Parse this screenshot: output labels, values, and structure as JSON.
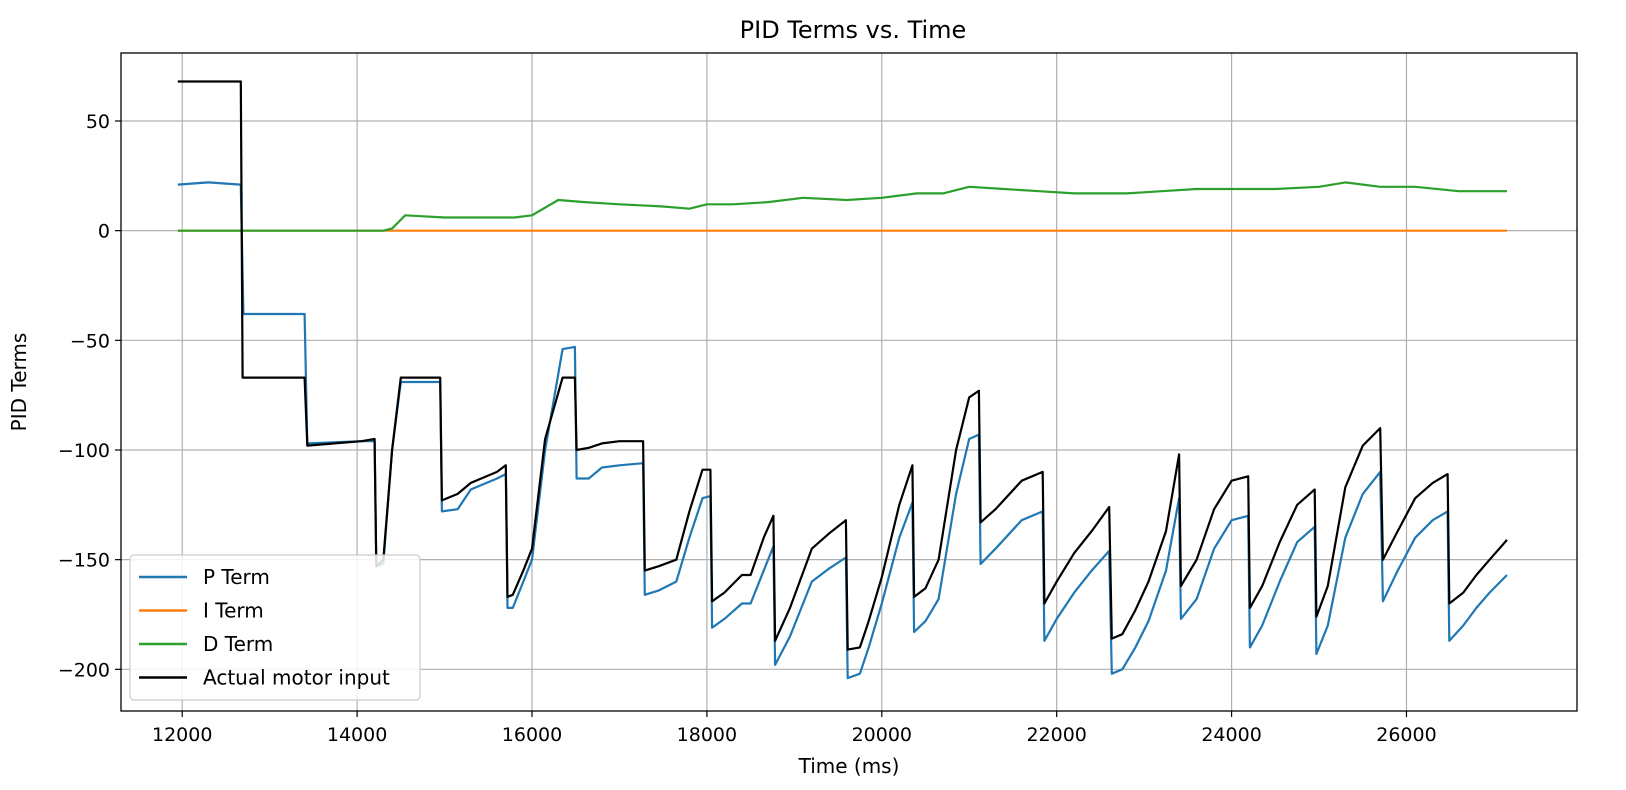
{
  "chart_data": {
    "type": "line",
    "title": "PID Terms vs. Time",
    "xlabel": "Time (ms)",
    "ylabel": "PID Terms",
    "xlim": [
      11300,
      27950
    ],
    "ylim": [
      -219,
      81
    ],
    "xticks": [
      12000,
      14000,
      16000,
      18000,
      20000,
      22000,
      24000,
      26000
    ],
    "xtick_labels": [
      "12000",
      "14000",
      "16000",
      "18000",
      "20000",
      "22000",
      "24000",
      "26000"
    ],
    "yticks": [
      50,
      0,
      -50,
      -100,
      -150,
      -200
    ],
    "ytick_labels": [
      "50",
      "0",
      "−50",
      "−100",
      "−150",
      "−200"
    ],
    "grid": true,
    "legend_position": "lower-left",
    "series": [
      {
        "name": "P Term",
        "color": "#1f77b4",
        "points": [
          [
            11950,
            21
          ],
          [
            12300,
            22
          ],
          [
            12670,
            21
          ],
          [
            12700,
            -38
          ],
          [
            13400,
            -38
          ],
          [
            13430,
            -97
          ],
          [
            14050,
            -96
          ],
          [
            14200,
            -96
          ],
          [
            14220,
            -153
          ],
          [
            14300,
            -152
          ],
          [
            14400,
            -100
          ],
          [
            14500,
            -69
          ],
          [
            14950,
            -69
          ],
          [
            14970,
            -128
          ],
          [
            15150,
            -127
          ],
          [
            15300,
            -118
          ],
          [
            15600,
            -113
          ],
          [
            15700,
            -111
          ],
          [
            15720,
            -172
          ],
          [
            15780,
            -172
          ],
          [
            15900,
            -160
          ],
          [
            16000,
            -150
          ],
          [
            16150,
            -100
          ],
          [
            16350,
            -54
          ],
          [
            16490,
            -53
          ],
          [
            16510,
            -113
          ],
          [
            16650,
            -113
          ],
          [
            16800,
            -108
          ],
          [
            17000,
            -107
          ],
          [
            17270,
            -106
          ],
          [
            17290,
            -166
          ],
          [
            17450,
            -164
          ],
          [
            17650,
            -160
          ],
          [
            17800,
            -140
          ],
          [
            17950,
            -122
          ],
          [
            18040,
            -121
          ],
          [
            18060,
            -181
          ],
          [
            18200,
            -177
          ],
          [
            18400,
            -170
          ],
          [
            18500,
            -170
          ],
          [
            18650,
            -155
          ],
          [
            18760,
            -144
          ],
          [
            18780,
            -198
          ],
          [
            18950,
            -185
          ],
          [
            19200,
            -160
          ],
          [
            19400,
            -154
          ],
          [
            19590,
            -149
          ],
          [
            19610,
            -204
          ],
          [
            19750,
            -202
          ],
          [
            19850,
            -190
          ],
          [
            20000,
            -170
          ],
          [
            20200,
            -140
          ],
          [
            20350,
            -124
          ],
          [
            20370,
            -183
          ],
          [
            20500,
            -178
          ],
          [
            20650,
            -168
          ],
          [
            20850,
            -120
          ],
          [
            21000,
            -95
          ],
          [
            21110,
            -93
          ],
          [
            21130,
            -152
          ],
          [
            21300,
            -145
          ],
          [
            21600,
            -132
          ],
          [
            21840,
            -128
          ],
          [
            21860,
            -187
          ],
          [
            22000,
            -177
          ],
          [
            22200,
            -165
          ],
          [
            22400,
            -155
          ],
          [
            22600,
            -146
          ],
          [
            22630,
            -202
          ],
          [
            22750,
            -200
          ],
          [
            22900,
            -190
          ],
          [
            23050,
            -178
          ],
          [
            23250,
            -155
          ],
          [
            23400,
            -122
          ],
          [
            23420,
            -177
          ],
          [
            23600,
            -168
          ],
          [
            23800,
            -145
          ],
          [
            24000,
            -132
          ],
          [
            24190,
            -130
          ],
          [
            24210,
            -190
          ],
          [
            24350,
            -180
          ],
          [
            24550,
            -160
          ],
          [
            24750,
            -142
          ],
          [
            24950,
            -135
          ],
          [
            24970,
            -193
          ],
          [
            25100,
            -180
          ],
          [
            25300,
            -140
          ],
          [
            25500,
            -120
          ],
          [
            25700,
            -110
          ],
          [
            25730,
            -169
          ],
          [
            25900,
            -155
          ],
          [
            26100,
            -140
          ],
          [
            26300,
            -132
          ],
          [
            26470,
            -128
          ],
          [
            26490,
            -187
          ],
          [
            26650,
            -180
          ],
          [
            26800,
            -172
          ],
          [
            26950,
            -165
          ],
          [
            27150,
            -157
          ]
        ]
      },
      {
        "name": "I Term",
        "color": "#ff7f0e",
        "points": [
          [
            11950,
            0
          ],
          [
            27150,
            0
          ]
        ]
      },
      {
        "name": "D Term",
        "color": "#2ca02c",
        "points": [
          [
            11950,
            0
          ],
          [
            14300,
            0
          ],
          [
            14400,
            1
          ],
          [
            14550,
            7
          ],
          [
            15000,
            6
          ],
          [
            15500,
            6
          ],
          [
            15800,
            6
          ],
          [
            16000,
            7
          ],
          [
            16300,
            14
          ],
          [
            16600,
            13
          ],
          [
            17000,
            12
          ],
          [
            17500,
            11
          ],
          [
            17800,
            10
          ],
          [
            18000,
            12
          ],
          [
            18300,
            12
          ],
          [
            18700,
            13
          ],
          [
            19100,
            15
          ],
          [
            19600,
            14
          ],
          [
            20000,
            15
          ],
          [
            20400,
            17
          ],
          [
            20700,
            17
          ],
          [
            21000,
            20
          ],
          [
            21400,
            19
          ],
          [
            21800,
            18
          ],
          [
            22200,
            17
          ],
          [
            22800,
            17
          ],
          [
            23200,
            18
          ],
          [
            23600,
            19
          ],
          [
            24000,
            19
          ],
          [
            24500,
            19
          ],
          [
            25000,
            20
          ],
          [
            25300,
            22
          ],
          [
            25700,
            20
          ],
          [
            26100,
            20
          ],
          [
            26600,
            18
          ],
          [
            27150,
            18
          ]
        ]
      },
      {
        "name": "Actual motor input",
        "color": "#000000",
        "points": [
          [
            11950,
            68
          ],
          [
            12670,
            68
          ],
          [
            12690,
            -67
          ],
          [
            13400,
            -67
          ],
          [
            13430,
            -98
          ],
          [
            14050,
            -96
          ],
          [
            14200,
            -95
          ],
          [
            14220,
            -153
          ],
          [
            14300,
            -150
          ],
          [
            14400,
            -100
          ],
          [
            14500,
            -67
          ],
          [
            14950,
            -67
          ],
          [
            14970,
            -123
          ],
          [
            15150,
            -120
          ],
          [
            15300,
            -115
          ],
          [
            15600,
            -110
          ],
          [
            15700,
            -107
          ],
          [
            15720,
            -167
          ],
          [
            15780,
            -166
          ],
          [
            15900,
            -155
          ],
          [
            16000,
            -145
          ],
          [
            16150,
            -95
          ],
          [
            16350,
            -67
          ],
          [
            16490,
            -67
          ],
          [
            16510,
            -100
          ],
          [
            16650,
            -99
          ],
          [
            16800,
            -97
          ],
          [
            17000,
            -96
          ],
          [
            17270,
            -96
          ],
          [
            17290,
            -155
          ],
          [
            17450,
            -153
          ],
          [
            17650,
            -150
          ],
          [
            17800,
            -128
          ],
          [
            17950,
            -109
          ],
          [
            18040,
            -109
          ],
          [
            18060,
            -169
          ],
          [
            18200,
            -165
          ],
          [
            18400,
            -157
          ],
          [
            18500,
            -157
          ],
          [
            18650,
            -140
          ],
          [
            18760,
            -130
          ],
          [
            18780,
            -187
          ],
          [
            18950,
            -172
          ],
          [
            19200,
            -145
          ],
          [
            19400,
            -138
          ],
          [
            19590,
            -132
          ],
          [
            19610,
            -191
          ],
          [
            19750,
            -190
          ],
          [
            19850,
            -178
          ],
          [
            20000,
            -158
          ],
          [
            20200,
            -125
          ],
          [
            20350,
            -107
          ],
          [
            20370,
            -167
          ],
          [
            20500,
            -163
          ],
          [
            20650,
            -150
          ],
          [
            20850,
            -100
          ],
          [
            21000,
            -76
          ],
          [
            21110,
            -73
          ],
          [
            21130,
            -133
          ],
          [
            21300,
            -127
          ],
          [
            21600,
            -114
          ],
          [
            21840,
            -110
          ],
          [
            21860,
            -170
          ],
          [
            22000,
            -160
          ],
          [
            22200,
            -147
          ],
          [
            22400,
            -137
          ],
          [
            22600,
            -126
          ],
          [
            22630,
            -186
          ],
          [
            22750,
            -184
          ],
          [
            22900,
            -173
          ],
          [
            23050,
            -160
          ],
          [
            23250,
            -137
          ],
          [
            23400,
            -102
          ],
          [
            23420,
            -162
          ],
          [
            23600,
            -150
          ],
          [
            23800,
            -127
          ],
          [
            24000,
            -114
          ],
          [
            24190,
            -112
          ],
          [
            24210,
            -172
          ],
          [
            24350,
            -162
          ],
          [
            24550,
            -142
          ],
          [
            24750,
            -125
          ],
          [
            24950,
            -118
          ],
          [
            24970,
            -176
          ],
          [
            25100,
            -162
          ],
          [
            25300,
            -117
          ],
          [
            25500,
            -98
          ],
          [
            25700,
            -90
          ],
          [
            25730,
            -150
          ],
          [
            25900,
            -137
          ],
          [
            26100,
            -122
          ],
          [
            26300,
            -115
          ],
          [
            26470,
            -111
          ],
          [
            26490,
            -170
          ],
          [
            26650,
            -165
          ],
          [
            26800,
            -157
          ],
          [
            26950,
            -150
          ],
          [
            27150,
            -141
          ]
        ]
      }
    ]
  }
}
